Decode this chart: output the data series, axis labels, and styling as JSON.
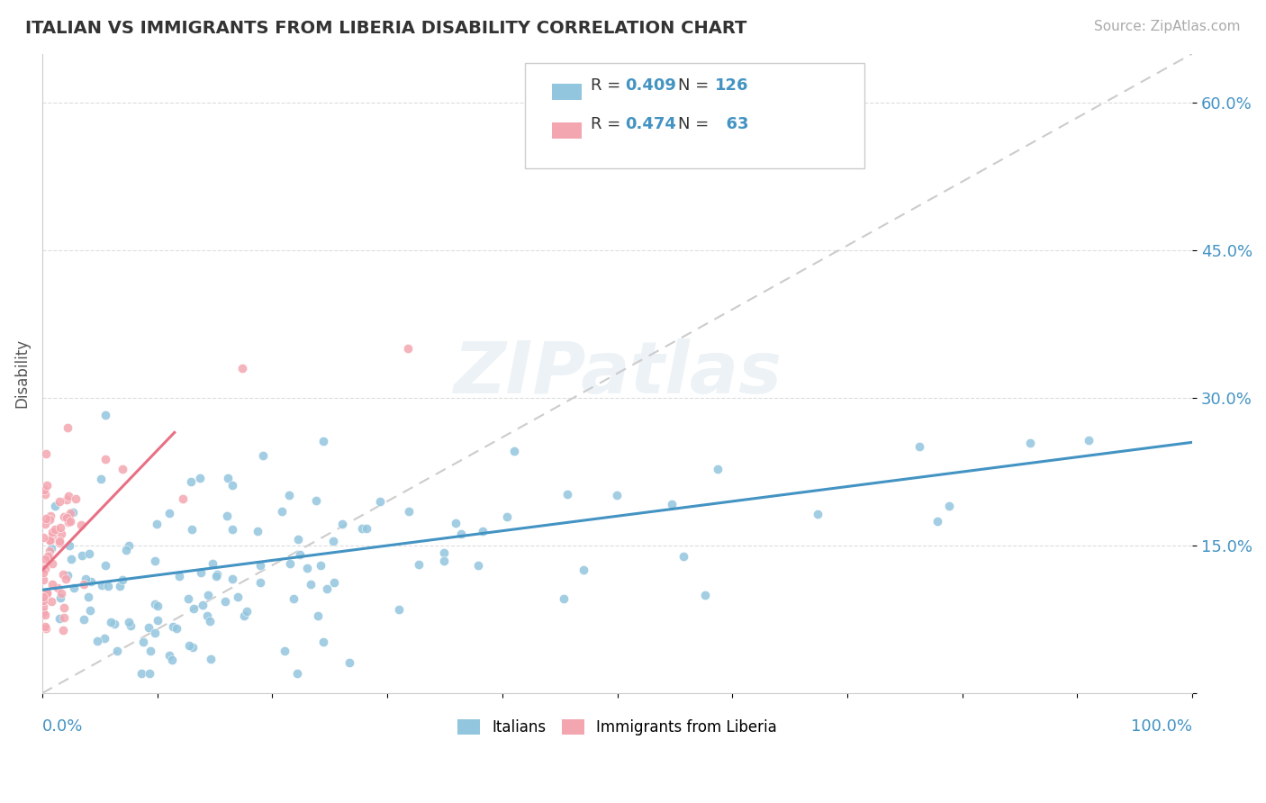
{
  "title": "ITALIAN VS IMMIGRANTS FROM LIBERIA DISABILITY CORRELATION CHART",
  "source": "Source: ZipAtlas.com",
  "ylabel": "Disability",
  "legend_italians": "Italians",
  "legend_liberia": "Immigrants from Liberia",
  "R_italians": 0.409,
  "N_italians": 126,
  "R_liberia": 0.474,
  "N_liberia": 63,
  "blue_color": "#92c5de",
  "pink_color": "#f4a6b0",
  "blue_line_color": "#4393c3",
  "pink_line_color": "#e87085",
  "ref_line_color": "#cccccc",
  "title_color": "#333333",
  "label_color": "#4393c3",
  "background_color": "#ffffff",
  "watermark_text": "ZIPatlas",
  "it_line_x": [
    0.0,
    1.0
  ],
  "it_line_y": [
    0.105,
    0.255
  ],
  "lib_line_x": [
    0.0,
    0.115
  ],
  "lib_line_y": [
    0.125,
    0.265
  ],
  "ref_line_x": [
    0.0,
    1.0
  ],
  "ref_line_y": [
    0.0,
    0.65
  ],
  "xlim": [
    0.0,
    1.0
  ],
  "ylim": [
    0.0,
    0.65
  ],
  "yticks": [
    0.0,
    0.15,
    0.3,
    0.45,
    0.6
  ],
  "ytick_labels": [
    "",
    "15.0%",
    "30.0%",
    "45.0%",
    "60.0%"
  ]
}
